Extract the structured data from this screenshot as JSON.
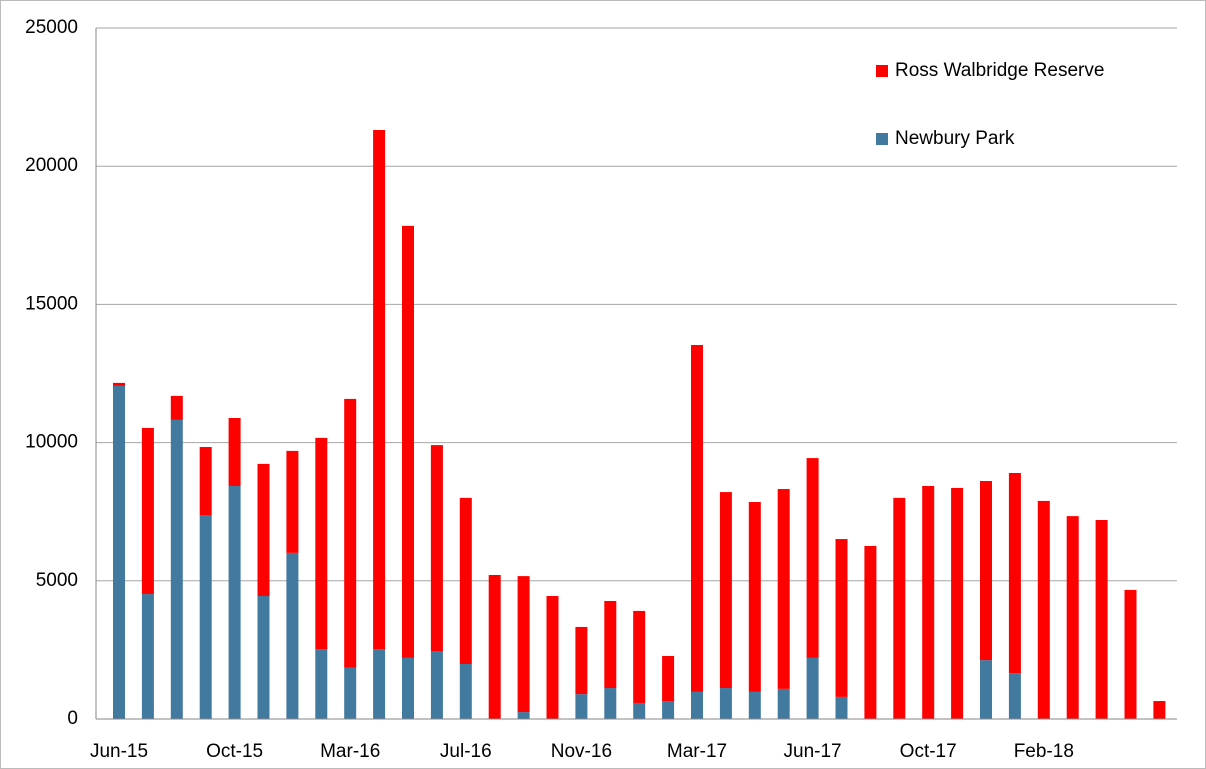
{
  "chart_data": {
    "type": "stacked_bar",
    "categories": [
      "Jun-15",
      null,
      null,
      null,
      "Oct-15",
      null,
      null,
      null,
      "Mar-16",
      null,
      null,
      null,
      "Jul-16",
      null,
      null,
      null,
      "Nov-16",
      null,
      null,
      null,
      "Mar-17",
      null,
      null,
      null,
      "Jun-17",
      null,
      null,
      null,
      "Oct-17",
      null,
      null,
      null,
      "Feb-18",
      null,
      null,
      null,
      null
    ],
    "series": [
      {
        "name": "Newbury Park",
        "color": "#41799f",
        "values": [
          12050,
          4520,
          10820,
          7380,
          8430,
          4450,
          6010,
          2530,
          1850,
          2530,
          2210,
          2460,
          1990,
          0,
          250,
          0,
          900,
          1120,
          580,
          650,
          980,
          1120,
          980,
          1090,
          2210,
          800,
          0,
          0,
          0,
          0,
          2130,
          1660,
          0,
          0,
          0,
          0,
          0
        ]
      },
      {
        "name": "Ross Walbridge Reserve",
        "color": "#ff0000",
        "values": [
          110,
          6010,
          870,
          2460,
          2460,
          4780,
          3690,
          7640,
          9730,
          18780,
          15630,
          7450,
          6010,
          5210,
          4920,
          4450,
          2430,
          3150,
          3330,
          1630,
          12550,
          7090,
          6870,
          7230,
          7230,
          5710,
          6260,
          8000,
          8430,
          8360,
          6480,
          7240,
          7890,
          7340,
          7200,
          4670,
          650
        ]
      }
    ],
    "ylim": [
      0,
      25000
    ],
    "yticks": [
      0,
      5000,
      10000,
      15000,
      20000,
      25000
    ],
    "grid": true,
    "legend": "top-right"
  }
}
